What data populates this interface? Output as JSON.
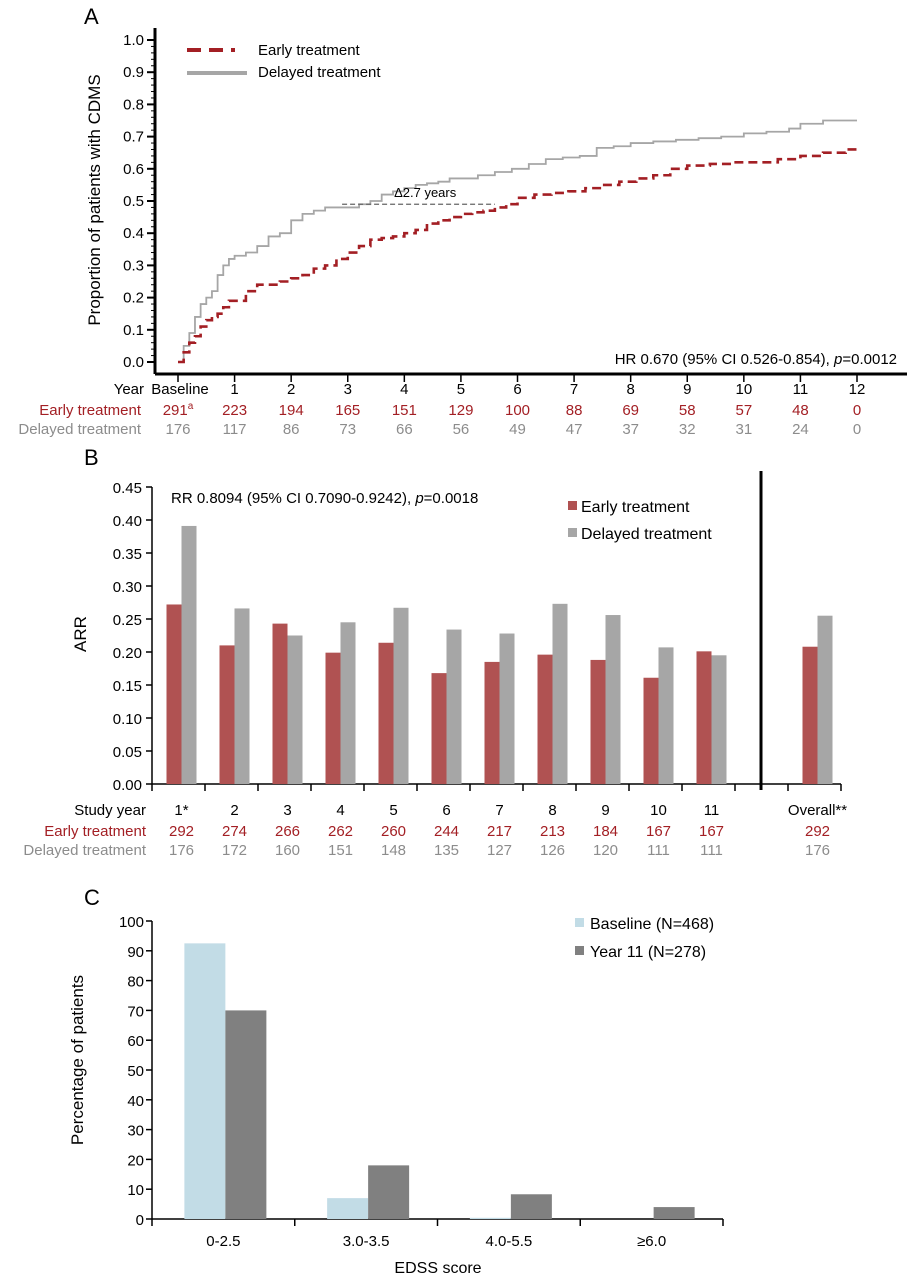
{
  "chart_data": [
    {
      "panel": "A",
      "type": "line",
      "panel_label": "A",
      "ylabel": "Proportion of patients with CDMS",
      "xlabel": "Year",
      "ylim": [
        0.0,
        1.0
      ],
      "yticks": [
        "0.0",
        "0.1",
        "0.2",
        "0.3",
        "0.4",
        "0.5",
        "0.6",
        "0.7",
        "0.8",
        "0.9",
        "1.0"
      ],
      "xlim": [
        0,
        12
      ],
      "xticks": [
        "Baseline",
        "1",
        "2",
        "3",
        "4",
        "5",
        "6",
        "7",
        "8",
        "9",
        "10",
        "11",
        "12"
      ],
      "legend": {
        "position": "top-left",
        "entries": [
          "Early treatment",
          "Delayed treatment"
        ]
      },
      "series": [
        {
          "name": "Early treatment",
          "color": "#a31f24",
          "style": "dashed",
          "x": [
            0,
            0.1,
            0.2,
            0.3,
            0.4,
            0.5,
            0.6,
            0.7,
            0.8,
            0.9,
            1.0,
            1.2,
            1.4,
            1.6,
            1.8,
            2.0,
            2.2,
            2.4,
            2.6,
            2.8,
            3.0,
            3.2,
            3.4,
            3.6,
            3.8,
            4.0,
            4.2,
            4.4,
            4.6,
            4.8,
            5.0,
            5.2,
            5.4,
            5.6,
            5.8,
            6.0,
            6.3,
            6.6,
            6.9,
            7.2,
            7.5,
            7.8,
            8.1,
            8.4,
            8.7,
            9.0,
            9.4,
            9.8,
            10.2,
            10.6,
            11.0,
            11.4,
            11.8,
            12.0
          ],
          "y": [
            0.0,
            0.03,
            0.06,
            0.08,
            0.11,
            0.13,
            0.14,
            0.15,
            0.17,
            0.19,
            0.19,
            0.22,
            0.24,
            0.24,
            0.25,
            0.26,
            0.27,
            0.29,
            0.3,
            0.32,
            0.34,
            0.36,
            0.38,
            0.385,
            0.39,
            0.4,
            0.41,
            0.43,
            0.44,
            0.45,
            0.46,
            0.465,
            0.47,
            0.48,
            0.49,
            0.51,
            0.52,
            0.525,
            0.53,
            0.54,
            0.55,
            0.56,
            0.57,
            0.58,
            0.6,
            0.61,
            0.615,
            0.62,
            0.62,
            0.63,
            0.64,
            0.65,
            0.66,
            0.66
          ]
        },
        {
          "name": "Delayed treatment",
          "color": "#a6a6a6",
          "style": "solid",
          "x": [
            0,
            0.1,
            0.2,
            0.3,
            0.4,
            0.5,
            0.6,
            0.7,
            0.8,
            0.9,
            1.0,
            1.2,
            1.4,
            1.6,
            1.8,
            2.0,
            2.2,
            2.4,
            2.6,
            2.8,
            3.0,
            3.2,
            3.4,
            3.6,
            3.8,
            4.0,
            4.2,
            4.4,
            4.6,
            4.8,
            5.0,
            5.3,
            5.6,
            5.9,
            6.2,
            6.5,
            6.8,
            7.1,
            7.4,
            7.7,
            8.0,
            8.4,
            8.8,
            9.2,
            9.6,
            10.0,
            10.4,
            10.8,
            11.0,
            11.4,
            11.8,
            12.0
          ],
          "y": [
            0.0,
            0.05,
            0.09,
            0.14,
            0.18,
            0.2,
            0.22,
            0.27,
            0.3,
            0.32,
            0.33,
            0.34,
            0.36,
            0.39,
            0.4,
            0.44,
            0.46,
            0.47,
            0.48,
            0.48,
            0.48,
            0.49,
            0.5,
            0.52,
            0.53,
            0.54,
            0.55,
            0.555,
            0.56,
            0.57,
            0.57,
            0.58,
            0.59,
            0.6,
            0.615,
            0.63,
            0.635,
            0.64,
            0.665,
            0.67,
            0.68,
            0.685,
            0.69,
            0.695,
            0.7,
            0.71,
            0.715,
            0.725,
            0.74,
            0.75,
            0.75,
            0.75
          ]
        }
      ],
      "annotations": {
        "delta": "Δ2.7 years",
        "delta_y": 0.49,
        "delta_x_start": 2.9,
        "delta_x_end": 5.6,
        "hr_prefix": "HR 0.670 (95% CI 0.526-0.854), ",
        "hr_p_label": "p",
        "hr_p_value": "=0.0012"
      },
      "risk_table": {
        "header_label": "Year",
        "rows": [
          {
            "label": "Early treatment",
            "color": "#a31f24",
            "values": [
              "291",
              "223",
              "194",
              "165",
              "151",
              "129",
              "100",
              "88",
              "69",
              "58",
              "57",
              "48",
              "0"
            ],
            "first_superscript": "a"
          },
          {
            "label": "Delayed treatment",
            "color": "#8c8c8c",
            "values": [
              "176",
              "117",
              "86",
              "73",
              "66",
              "56",
              "49",
              "47",
              "37",
              "32",
              "31",
              "24",
              "0"
            ]
          }
        ]
      }
    },
    {
      "panel": "B",
      "type": "bar",
      "panel_label": "B",
      "ylabel": "ARR",
      "ylim": [
        0.0,
        0.45
      ],
      "yticks": [
        "0.00",
        "0.05",
        "0.10",
        "0.15",
        "0.20",
        "0.25",
        "0.30",
        "0.35",
        "0.40",
        "0.45"
      ],
      "categories": [
        "1*",
        "2",
        "3",
        "4",
        "5",
        "6",
        "7",
        "8",
        "9",
        "10",
        "11",
        "",
        "Overall**"
      ],
      "legend": {
        "position": "top-right",
        "entries": [
          "Early treatment",
          "Delayed treatment"
        ]
      },
      "series": [
        {
          "name": "Early treatment",
          "color": "#b05252",
          "values": [
            0.272,
            0.21,
            0.243,
            0.199,
            0.214,
            0.168,
            0.185,
            0.196,
            0.188,
            0.161,
            0.201,
            null,
            0.208
          ]
        },
        {
          "name": "Delayed treatment",
          "color": "#a6a6a6",
          "values": [
            0.391,
            0.266,
            0.225,
            0.245,
            0.267,
            0.234,
            0.228,
            0.273,
            0.256,
            0.207,
            0.195,
            null,
            0.255
          ]
        }
      ],
      "annotation_prefix": "RR 0.8094 (95% CI 0.7090-0.9242), ",
      "annotation_p_label": "p",
      "annotation_p_value": "=0.0018",
      "n_table": {
        "header_label": "Study year",
        "rows": [
          {
            "label": "Early treatment",
            "color": "#a31f24",
            "values": [
              "292",
              "274",
              "266",
              "262",
              "260",
              "244",
              "217",
              "213",
              "184",
              "167",
              "167",
              "",
              "292"
            ]
          },
          {
            "label": "Delayed treatment",
            "color": "#8c8c8c",
            "values": [
              "176",
              "172",
              "160",
              "151",
              "148",
              "135",
              "127",
              "126",
              "120",
              "111",
              "111",
              "",
              "176"
            ]
          }
        ]
      }
    },
    {
      "panel": "C",
      "type": "bar",
      "panel_label": "C",
      "ylabel": "Percentage of patients",
      "xlabel": "EDSS score",
      "ylim": [
        0,
        100
      ],
      "yticks": [
        "0",
        "10",
        "20",
        "30",
        "40",
        "50",
        "60",
        "70",
        "80",
        "90",
        "100"
      ],
      "categories": [
        "0-2.5",
        "3.0-3.5",
        "4.0-5.5",
        "≥6.0"
      ],
      "legend": {
        "position": "top-right",
        "entries": [
          "Baseline (N=468)",
          "Year 11 (N=278)"
        ]
      },
      "series": [
        {
          "name": "Baseline (N=468)",
          "color": "#c2dce6",
          "values": [
            92.5,
            7.0,
            0.4,
            0.0
          ]
        },
        {
          "name": "Year 11 (N=278)",
          "color": "#808080",
          "values": [
            70.0,
            18.0,
            8.3,
            4.0
          ]
        }
      ]
    }
  ]
}
